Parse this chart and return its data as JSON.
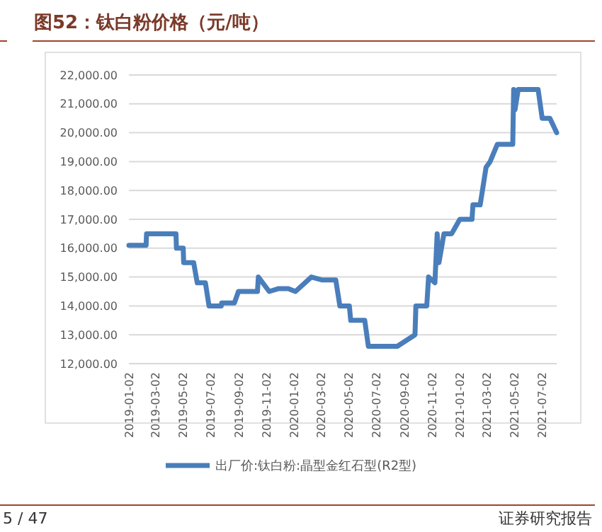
{
  "chart_data": {
    "type": "line",
    "title": "图52：钛白粉价格（元/吨）",
    "x": [
      "2019-01-02",
      "2019-02-09",
      "2019-02-10",
      "2019-04-16",
      "2019-04-17",
      "2019-05-02",
      "2019-05-03",
      "2019-05-25",
      "2019-06-02",
      "2019-06-20",
      "2019-06-28",
      "2019-07-25",
      "2019-07-26",
      "2019-08-23",
      "2019-09-01",
      "2019-10-13",
      "2019-10-15",
      "2019-11-08",
      "2019-11-29",
      "2019-12-20",
      "2020-01-05",
      "2020-02-09",
      "2020-03-03",
      "2020-04-03",
      "2020-04-12",
      "2020-05-03",
      "2020-05-06",
      "2020-06-06",
      "2020-06-14",
      "2020-08-17",
      "2020-09-25",
      "2020-09-27",
      "2020-10-21",
      "2020-10-25",
      "2020-11-08",
      "2020-11-13",
      "2020-11-17",
      "2020-11-28",
      "2020-12-15",
      "2021-01-02",
      "2021-01-29",
      "2021-01-31",
      "2021-02-16",
      "2021-03-01",
      "2021-03-10",
      "2021-03-26",
      "2021-04-29",
      "2021-05-01",
      "2021-05-04",
      "2021-05-11",
      "2021-06-24",
      "2021-07-03",
      "2021-07-20",
      "2021-08-04"
    ],
    "series": [
      {
        "name": "出厂价:钛白粉:晶型金红石型(R2型)",
        "color": "#4a7ebb",
        "values": [
          16100,
          16100,
          16500,
          16500,
          16000,
          16000,
          15500,
          15500,
          14800,
          14800,
          14000,
          14000,
          14100,
          14100,
          14500,
          14500,
          15000,
          14500,
          14600,
          14600,
          14500,
          15000,
          14900,
          14900,
          14000,
          14000,
          13500,
          13500,
          12600,
          12600,
          13000,
          14000,
          14000,
          15000,
          14800,
          16500,
          15500,
          16500,
          16500,
          17000,
          17000,
          17500,
          17500,
          18800,
          19000,
          19600,
          19600,
          21500,
          20800,
          21500,
          21500,
          20500,
          20500,
          20000
        ]
      }
    ],
    "xlim": [
      "2019-01-02",
      "2021-08-04"
    ],
    "xticks": [
      "2019-01-02",
      "2019-03-02",
      "2019-05-02",
      "2019-07-02",
      "2019-09-02",
      "2019-11-02",
      "2020-01-02",
      "2020-03-02",
      "2020-05-02",
      "2020-07-02",
      "2020-09-02",
      "2020-11-02",
      "2021-01-02",
      "2021-03-02",
      "2021-05-02",
      "2021-07-02"
    ],
    "ylim": [
      12000,
      22000
    ],
    "yticks": [
      {
        "value": 12000,
        "label": "12,000.00"
      },
      {
        "value": 13000,
        "label": "13,000.00"
      },
      {
        "value": 14000,
        "label": "14,000.00"
      },
      {
        "value": 15000,
        "label": "15,000.00"
      },
      {
        "value": 16000,
        "label": "16,000.00"
      },
      {
        "value": 17000,
        "label": "17,000.00"
      },
      {
        "value": 18000,
        "label": "18,000.00"
      },
      {
        "value": 19000,
        "label": "19,000.00"
      },
      {
        "value": 20000,
        "label": "20,000.00"
      },
      {
        "value": 21000,
        "label": "21,000.00"
      },
      {
        "value": 22000,
        "label": "22,000.00"
      }
    ],
    "grid": "y",
    "legend": "bottom",
    "marker": "none",
    "line_style": "solid",
    "annotations": [
      "5 / 47",
      "证券研究报告"
    ]
  }
}
